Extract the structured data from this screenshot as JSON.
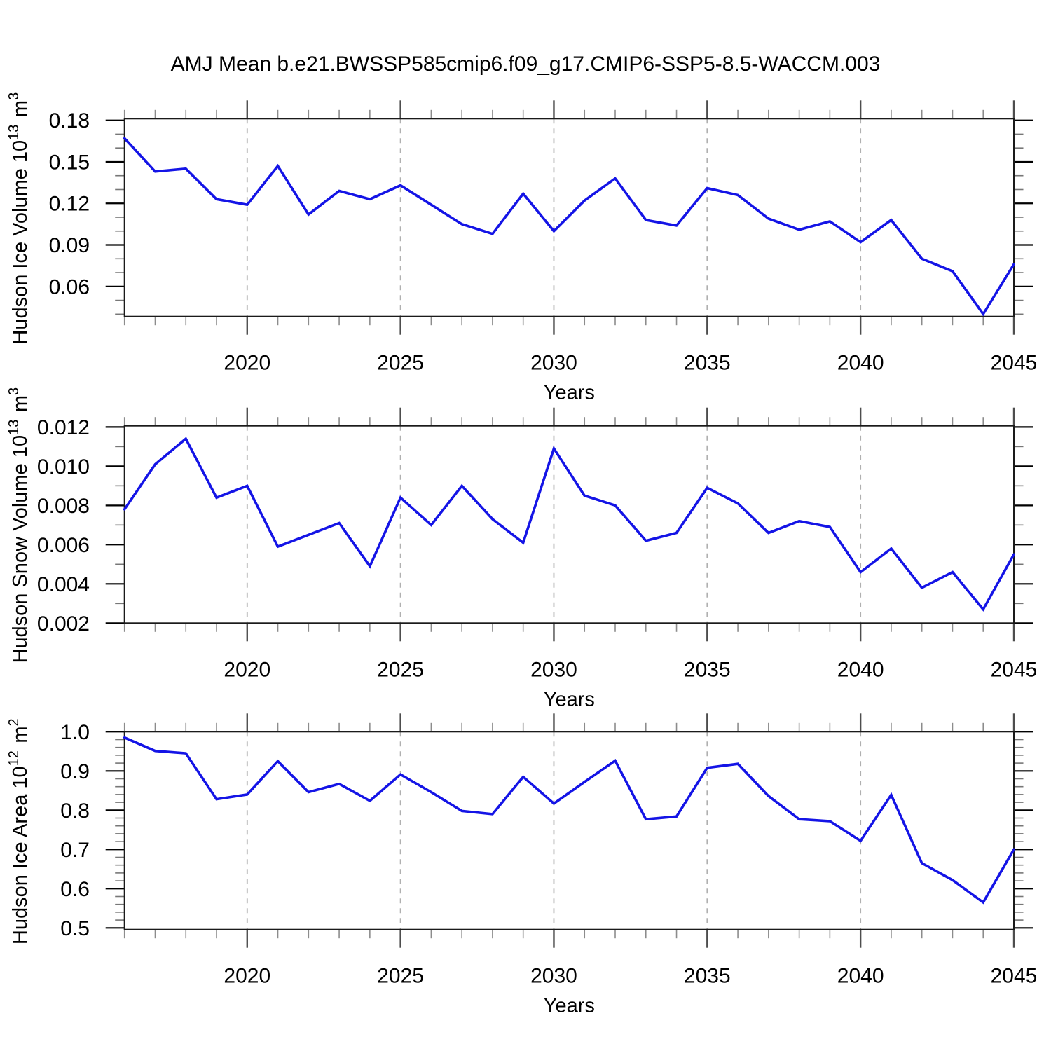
{
  "title": "AMJ Mean b.e21.BWSSP585cmip6.f09_g17.CMIP6-SSP5-8.5-WACCM.003",
  "colors": {
    "line": "#1414e6",
    "frame": "#1a1a1a",
    "grid": "#b0b0b0",
    "x_major_tick": "#4d4d4d",
    "x_minor_tick": "#8c8c8c",
    "y_major_tick": "#000000",
    "y_minor_tick": "#777777",
    "text": "#000000",
    "background": "#ffffff"
  },
  "chart_data": [
    {
      "type": "line",
      "ylabel": "Hudson Ice Volume 10^13 m^3",
      "xlabel": "Years",
      "xlim": [
        2016,
        2045
      ],
      "ylim": [
        0.0383,
        0.1812
      ],
      "xticks": [
        2020,
        2025,
        2030,
        2035,
        2040,
        2045
      ],
      "xtick_labels": [
        "2020",
        "2025",
        "2030",
        "2035",
        "2040",
        "2045"
      ],
      "xminor_step": 1,
      "grid_x": [
        2020,
        2025,
        2030,
        2035,
        2040
      ],
      "yticks": [
        0.06,
        0.09,
        0.12,
        0.15,
        0.18
      ],
      "ytick_labels": [
        "0.06",
        "0.09",
        "0.12",
        "0.15",
        "0.18"
      ],
      "yminor_step": 0.01,
      "grid_on": "x-dashed",
      "legend": "none",
      "x": [
        2016,
        2017,
        2018,
        2019,
        2020,
        2021,
        2022,
        2023,
        2024,
        2025,
        2026,
        2027,
        2028,
        2029,
        2030,
        2031,
        2032,
        2033,
        2034,
        2035,
        2036,
        2037,
        2038,
        2039,
        2040,
        2041,
        2042,
        2043,
        2044,
        2045
      ],
      "values": [
        0.167,
        0.143,
        0.145,
        0.123,
        0.119,
        0.147,
        0.112,
        0.129,
        0.123,
        0.133,
        0.119,
        0.105,
        0.098,
        0.127,
        0.1,
        0.122,
        0.138,
        0.108,
        0.104,
        0.131,
        0.126,
        0.109,
        0.101,
        0.107,
        0.092,
        0.108,
        0.08,
        0.071,
        0.04,
        0.076
      ]
    },
    {
      "type": "line",
      "ylabel": "Hudson Snow Volume 10^13 m^3",
      "xlabel": "Years",
      "xlim": [
        2016,
        2045
      ],
      "ylim": [
        0.002,
        0.01206
      ],
      "xticks": [
        2020,
        2025,
        2030,
        2035,
        2040,
        2045
      ],
      "xtick_labels": [
        "2020",
        "2025",
        "2030",
        "2035",
        "2040",
        "2045"
      ],
      "xminor_step": 1,
      "grid_x": [
        2020,
        2025,
        2030,
        2035,
        2040
      ],
      "yticks": [
        0.002,
        0.004,
        0.006,
        0.008,
        0.01,
        0.012
      ],
      "ytick_labels": [
        "0.002",
        "0.004",
        "0.006",
        "0.008",
        "0.010",
        "0.012"
      ],
      "yminor_step": 0.001,
      "grid_on": "x-dashed",
      "legend": "none",
      "x": [
        2016,
        2017,
        2018,
        2019,
        2020,
        2021,
        2022,
        2023,
        2024,
        2025,
        2026,
        2027,
        2028,
        2029,
        2030,
        2031,
        2032,
        2033,
        2034,
        2035,
        2036,
        2037,
        2038,
        2039,
        2040,
        2041,
        2042,
        2043,
        2044,
        2045
      ],
      "values": [
        0.0078,
        0.0101,
        0.0114,
        0.0084,
        0.009,
        0.0059,
        0.0065,
        0.0071,
        0.0049,
        0.0084,
        0.007,
        0.009,
        0.0073,
        0.0061,
        0.0109,
        0.0085,
        0.008,
        0.0062,
        0.0066,
        0.0089,
        0.0081,
        0.0066,
        0.0072,
        0.0069,
        0.0046,
        0.0058,
        0.0038,
        0.0046,
        0.0027,
        0.0055
      ]
    },
    {
      "type": "line",
      "ylabel": "Hudson Ice Area 10^12 m^2",
      "xlabel": "Years",
      "xlim": [
        2016,
        2045
      ],
      "ylim": [
        0.4957,
        1.0
      ],
      "xticks": [
        2020,
        2025,
        2030,
        2035,
        2040,
        2045
      ],
      "xtick_labels": [
        "2020",
        "2025",
        "2030",
        "2035",
        "2040",
        "2045"
      ],
      "xminor_step": 1,
      "grid_x": [
        2020,
        2025,
        2030,
        2035,
        2040
      ],
      "yticks": [
        0.5,
        0.6,
        0.7,
        0.8,
        0.9,
        1.0
      ],
      "ytick_labels": [
        "0.5",
        "0.6",
        "0.7",
        "0.8",
        "0.9",
        "1.0"
      ],
      "yminor_step": 0.02,
      "grid_on": "x-dashed",
      "legend": "none",
      "x": [
        2016,
        2017,
        2018,
        2019,
        2020,
        2021,
        2022,
        2023,
        2024,
        2025,
        2026,
        2027,
        2028,
        2029,
        2030,
        2031,
        2032,
        2033,
        2034,
        2035,
        2036,
        2037,
        2038,
        2039,
        2040,
        2041,
        2042,
        2043,
        2044,
        2045
      ],
      "values": [
        0.985,
        0.951,
        0.945,
        0.828,
        0.84,
        0.925,
        0.846,
        0.867,
        0.824,
        0.891,
        0.846,
        0.798,
        0.79,
        0.885,
        0.817,
        0.872,
        0.926,
        0.777,
        0.784,
        0.908,
        0.918,
        0.836,
        0.777,
        0.772,
        0.722,
        0.839,
        0.665,
        0.622,
        0.565,
        0.7
      ]
    }
  ]
}
